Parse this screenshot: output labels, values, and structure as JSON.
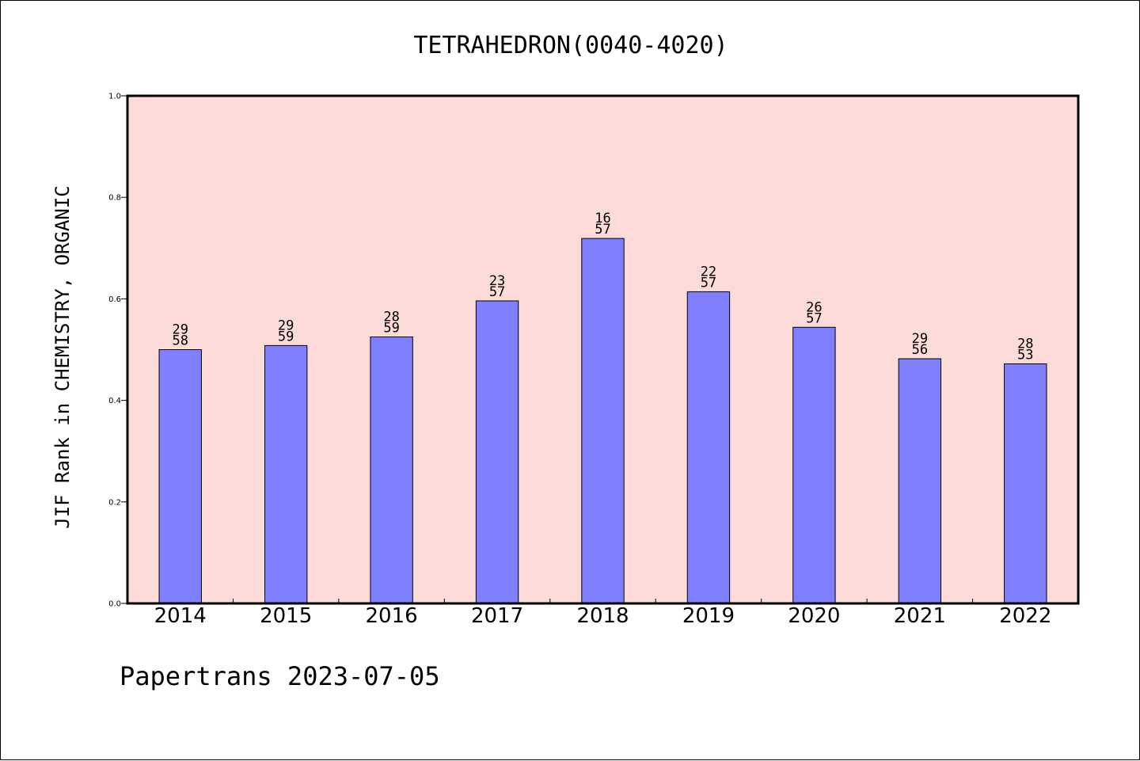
{
  "chart_data": {
    "type": "bar",
    "title": "TETRAHEDRON(0040-4020)",
    "xlabel": "",
    "ylabel": "JIF Rank in CHEMISTRY, ORGANIC",
    "ylim": [
      0,
      1.0
    ],
    "yticks": [
      "0.0",
      "0.2",
      "0.4",
      "0.6",
      "0.8",
      "1.0"
    ],
    "categories": [
      "2014",
      "2015",
      "2016",
      "2017",
      "2018",
      "2019",
      "2020",
      "2021",
      "2022"
    ],
    "values": [
      0.5,
      0.508,
      0.525,
      0.596,
      0.719,
      0.614,
      0.544,
      0.482,
      0.472
    ],
    "rank_labels": [
      {
        "rank": "29",
        "total": "58"
      },
      {
        "rank": "29",
        "total": "59"
      },
      {
        "rank": "28",
        "total": "59"
      },
      {
        "rank": "23",
        "total": "57"
      },
      {
        "rank": "16",
        "total": "57"
      },
      {
        "rank": "22",
        "total": "57"
      },
      {
        "rank": "26",
        "total": "57"
      },
      {
        "rank": "29",
        "total": "56"
      },
      {
        "rank": "28",
        "total": "53"
      }
    ],
    "grid": false,
    "colors": {
      "plot_background": "#fddbd8",
      "bar_fill": "#8080ff",
      "bar_stroke": "#000000"
    }
  },
  "footer": {
    "credit": "Papertrans 2023-07-05"
  }
}
